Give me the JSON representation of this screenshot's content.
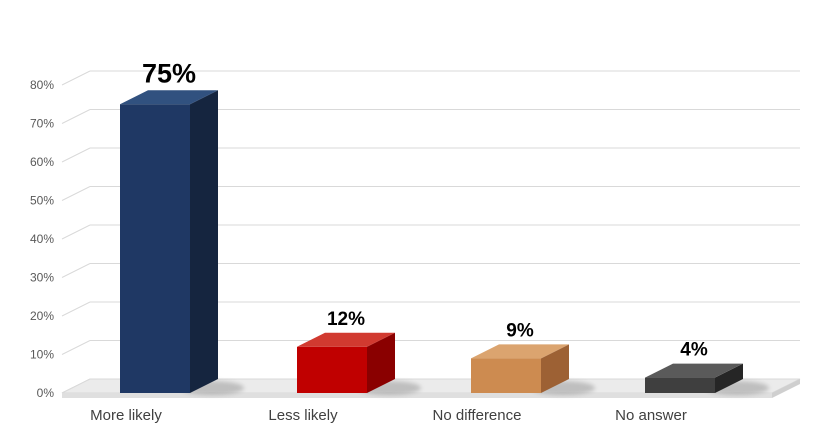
{
  "chart_data": {
    "type": "bar",
    "style": "3d",
    "title": "",
    "xlabel": "",
    "ylabel": "",
    "categories": [
      "More likely",
      "Less likely",
      "No difference",
      "No answer"
    ],
    "values": [
      75,
      12,
      9,
      4
    ],
    "value_labels": [
      "75%",
      "12%",
      "9%",
      "4%"
    ],
    "ylim": [
      0,
      80
    ],
    "yticks": [
      "0%",
      "10%",
      "20%",
      "30%",
      "40%",
      "50%",
      "60%",
      "70%",
      "80%"
    ],
    "ytick_values": [
      0,
      10,
      20,
      30,
      40,
      50,
      60,
      70,
      80
    ],
    "grid": true,
    "legend": false,
    "bar_colors": [
      {
        "front": "#1f3864",
        "top": "#31517f",
        "side": "#15253f"
      },
      {
        "front": "#c00000",
        "top": "#d13a30",
        "side": "#8a0000"
      },
      {
        "front": "#cd8b50",
        "top": "#dba46f",
        "side": "#9d6134"
      },
      {
        "front": "#3f3f3f",
        "top": "#5a5a5a",
        "side": "#262626"
      }
    ],
    "colors": {
      "gridline": "#d9d9d9",
      "axis_text": "#595959",
      "category_text": "#404040",
      "value_text": "#000000",
      "floor": "#ebebeb",
      "floor_edge": "#dfdfdf",
      "floor_edge_side": "#cfcfcf",
      "shadow": "#8a8a8a"
    }
  }
}
